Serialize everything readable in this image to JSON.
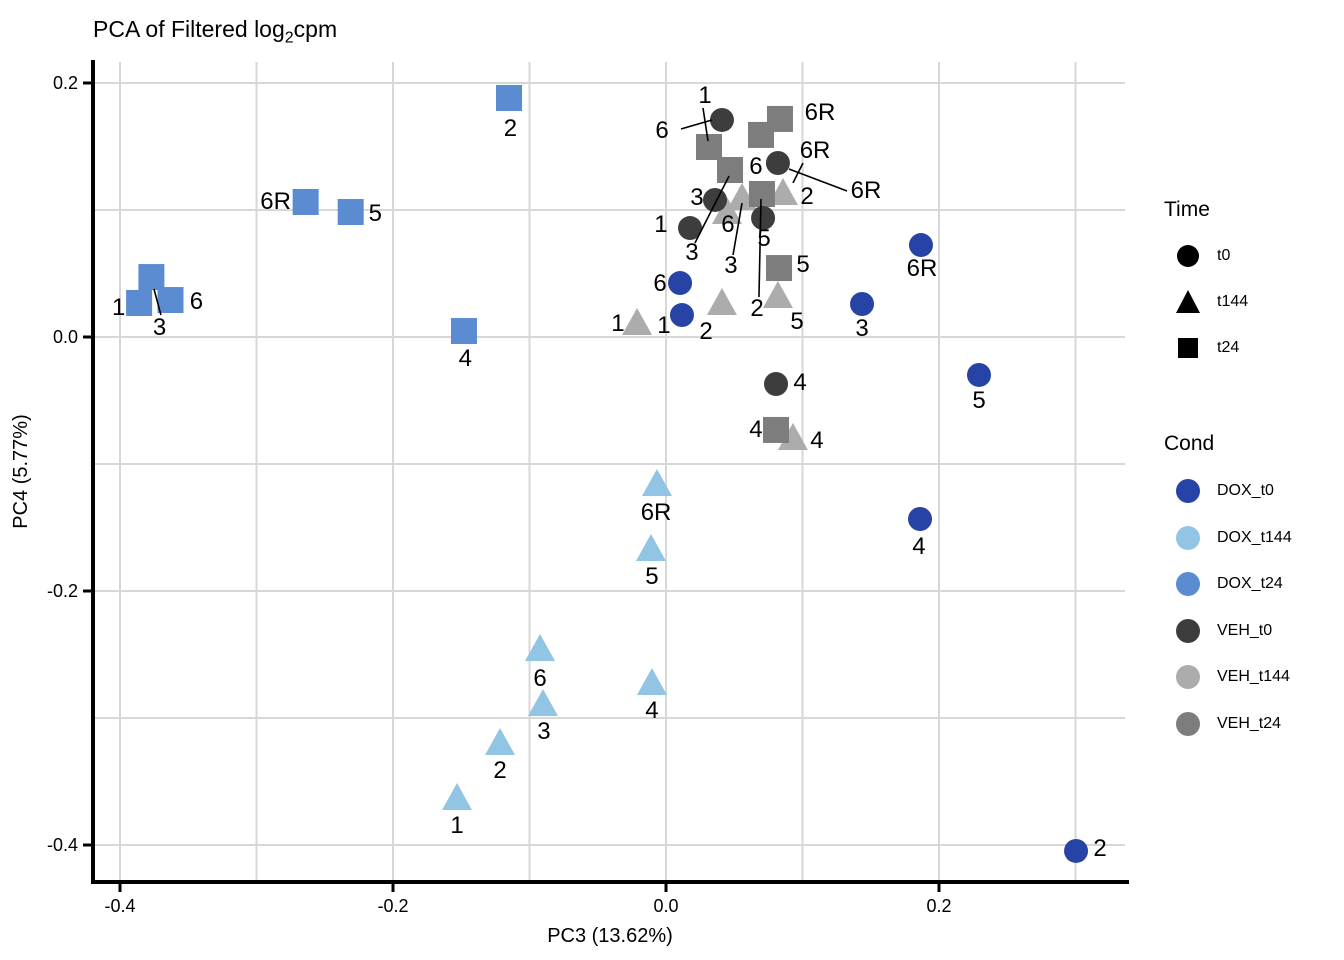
{
  "title": {
    "pre": "PCA of Filtered log",
    "sub": "2",
    "post": "cpm"
  },
  "axes": {
    "x": {
      "label": "PC3 (13.62%)",
      "ticks": [
        -0.4,
        -0.2,
        0.0,
        0.2
      ],
      "tick_labels": [
        "-0.4",
        "-0.2",
        "0.0",
        "0.2"
      ],
      "minor_ticks": [
        -0.3,
        -0.1,
        0.1,
        0.3
      ]
    },
    "y": {
      "label": "PC4 (5.77%)",
      "ticks": [
        0.2,
        0.0,
        -0.2,
        -0.4
      ],
      "tick_labels": [
        "0.2",
        "0.0",
        "-0.2",
        "-0.4"
      ],
      "minor_ticks": [
        0.1,
        -0.1,
        -0.3
      ]
    }
  },
  "colors": {
    "dox_t0": "#2743a6",
    "dox_t144": "#92c5e3",
    "dox_t24": "#5b8bd0",
    "veh_t0": "#3d3d3d",
    "veh_t144": "#acacac",
    "veh_t24": "#7d7d7d",
    "grid": "#d7d7d7",
    "axis": "#000000",
    "label_text": "#000000"
  },
  "legend": {
    "time": {
      "title": "Time",
      "items": [
        {
          "label": "t0",
          "shape": "circle"
        },
        {
          "label": "t144",
          "shape": "triangle"
        },
        {
          "label": "t24",
          "shape": "square"
        }
      ]
    },
    "cond": {
      "title": "Cond",
      "items": [
        {
          "label": "DOX_t0",
          "color": "#2743a6"
        },
        {
          "label": "DOX_t144",
          "color": "#92c5e3"
        },
        {
          "label": "DOX_t24",
          "color": "#5b8bd0"
        },
        {
          "label": "VEH_t0",
          "color": "#3d3d3d"
        },
        {
          "label": "VEH_t144",
          "color": "#acacac"
        },
        {
          "label": "VEH_t24",
          "color": "#7d7d7d"
        }
      ]
    }
  },
  "chart_data": {
    "type": "scatter",
    "title": "PCA of Filtered log2cpm",
    "xlabel": "PC3 (13.62%)",
    "ylabel": "PC4 (5.77%)",
    "xlim": [
      -0.418,
      0.336
    ],
    "ylim": [
      -0.431,
      0.217
    ],
    "grid": true,
    "legend_position": "right",
    "series": [
      {
        "name": "VEH_t144",
        "time": "t144",
        "shape": "triangle",
        "color": "#acacac",
        "points": [
          {
            "label": "3",
            "x": 0.0557,
            "y": 0.1102,
            "lx": 0.0476,
            "ly": 0.0567
          },
          {
            "label": "6",
            "x": 0.0447,
            "y": 0.0992,
            "lx": 0.0454,
            "ly": 0.089
          },
          {
            "label": "2",
            "x": 0.0857,
            "y": 0.1142,
            "lx": 0.1033,
            "ly": 0.111
          },
          {
            "label": "1",
            "x": -0.0212,
            "y": 0.0118,
            "lx": -0.0352,
            "ly": 0.011
          },
          {
            "label": "2",
            "x": 0.041,
            "y": 0.0276,
            "lx": 0.0293,
            "ly": 0.0047
          },
          {
            "label": "5",
            "x": 0.082,
            "y": 0.0331,
            "lx": 0.096,
            "ly": 0.0126
          },
          {
            "label": "4",
            "x": 0.093,
            "y": -0.0787,
            "lx": 0.1106,
            "ly": -0.0811
          }
        ]
      },
      {
        "name": "VEH_t24",
        "time": "t24",
        "shape": "square",
        "color": "#7d7d7d",
        "points": [
          {
            "label": null,
            "x": 0.0315,
            "y": 0.1496,
            "lx": null,
            "ly": null
          },
          {
            "label": "6R",
            "x": 0.0835,
            "y": 0.1717,
            "lx": 0.1128,
            "ly": 0.1772
          },
          {
            "label": null,
            "x": 0.0696,
            "y": 0.1591,
            "lx": null,
            "ly": null
          },
          {
            "label": "6",
            "x": 0.0469,
            "y": 0.1315,
            "lx": 0.0659,
            "ly": 0.1346
          },
          {
            "label": "2",
            "x": 0.0703,
            "y": 0.1126,
            "lx": 0.0667,
            "ly": 0.0228
          },
          {
            "label": "5",
            "x": 0.0828,
            "y": 0.0543,
            "lx": 0.1004,
            "ly": 0.0575
          },
          {
            "label": "4",
            "x": 0.0806,
            "y": -0.0732,
            "lx": 0.0659,
            "ly": -0.0724
          }
        ]
      },
      {
        "name": "VEH_t0",
        "time": "t0",
        "shape": "circle",
        "color": "#3d3d3d",
        "points": [
          {
            "label": null,
            "x": 0.041,
            "y": 0.1709,
            "lx": null,
            "ly": null
          },
          {
            "label": "3",
            "x": 0.0359,
            "y": 0.1079,
            "lx": 0.0227,
            "ly": 0.1102
          },
          {
            "label": "1",
            "x": 0.0176,
            "y": 0.0858,
            "lx": -0.0037,
            "ly": 0.089
          },
          {
            "label": "5",
            "x": 0.0711,
            "y": 0.0937,
            "lx": 0.0718,
            "ly": 0.078
          },
          {
            "label": null,
            "x": 0.082,
            "y": 0.137,
            "lx": null,
            "ly": null
          },
          {
            "label": "4",
            "x": 0.0806,
            "y": -0.037,
            "lx": 0.0982,
            "ly": -0.0354
          }
        ]
      },
      {
        "name": "DOX_t144",
        "time": "t144",
        "shape": "triangle",
        "color": "#92c5e3",
        "points": [
          {
            "label": "6R",
            "x": -0.0066,
            "y": -0.115,
            "lx": -0.0073,
            "ly": -0.1378
          },
          {
            "label": "5",
            "x": -0.011,
            "y": -0.1661,
            "lx": -0.0103,
            "ly": -0.1882
          },
          {
            "label": "6",
            "x": -0.0923,
            "y": -0.2449,
            "lx": -0.0923,
            "ly": -0.2685
          },
          {
            "label": "3",
            "x": -0.0901,
            "y": -0.2882,
            "lx": -0.0894,
            "ly": -0.3102
          },
          {
            "label": "4",
            "x": -0.0103,
            "y": -0.2717,
            "lx": -0.0103,
            "ly": -0.2937
          },
          {
            "label": "2",
            "x": -0.1216,
            "y": -0.3189,
            "lx": -0.1216,
            "ly": -0.3409
          },
          {
            "label": "1",
            "x": -0.1531,
            "y": -0.3622,
            "lx": -0.1531,
            "ly": -0.3843
          }
        ]
      },
      {
        "name": "DOX_t24",
        "time": "t24",
        "shape": "square",
        "color": "#5b8bd0",
        "points": [
          {
            "label": "1",
            "x": -0.386,
            "y": 0.0268,
            "lx": -0.401,
            "ly": 0.0236
          },
          {
            "label": "3",
            "x": -0.377,
            "y": 0.0472,
            "lx": -0.371,
            "ly": 0.0079
          },
          {
            "label": "6",
            "x": -0.363,
            "y": 0.0291,
            "lx": -0.344,
            "ly": 0.0283
          },
          {
            "label": "6R",
            "x": -0.264,
            "y": 0.1063,
            "lx": -0.286,
            "ly": 0.1071
          },
          {
            "label": "5",
            "x": -0.231,
            "y": 0.0984,
            "lx": -0.213,
            "ly": 0.0976
          },
          {
            "label": "2",
            "x": -0.115,
            "y": 0.1882,
            "lx": -0.114,
            "ly": 0.1646
          },
          {
            "label": "4",
            "x": -0.148,
            "y": 0.0047,
            "lx": -0.147,
            "ly": -0.0165
          }
        ]
      },
      {
        "name": "DOX_t0",
        "time": "t0",
        "shape": "circle",
        "color": "#2743a6",
        "points": [
          {
            "label": "1",
            "x": 0.0117,
            "y": 0.0173,
            "lx": -0.0015,
            "ly": 0.0094
          },
          {
            "label": "6",
            "x": 0.0103,
            "y": 0.0425,
            "lx": -0.0044,
            "ly": 0.0425
          },
          {
            "label": "6R",
            "x": 0.1868,
            "y": 0.0724,
            "lx": 0.1875,
            "ly": 0.0543
          },
          {
            "label": "3",
            "x": 0.1436,
            "y": 0.026,
            "lx": 0.1436,
            "ly": 0.0071
          },
          {
            "label": "5",
            "x": 0.2293,
            "y": -0.0299,
            "lx": 0.2293,
            "ly": -0.0496
          },
          {
            "label": "4",
            "x": 0.1861,
            "y": -0.1433,
            "lx": 0.1853,
            "ly": -0.1646
          },
          {
            "label": "2",
            "x": 0.3004,
            "y": -0.4047,
            "lx": 0.318,
            "ly": -0.4024
          }
        ]
      }
    ],
    "floating_labels": [
      {
        "text": "1",
        "x": 0.0286,
        "y": 0.1906
      },
      {
        "text": "6",
        "x": -0.0029,
        "y": 0.163
      },
      {
        "text": "3",
        "x": 0.019,
        "y": 0.0669
      },
      {
        "text": "6R",
        "x": 0.1092,
        "y": 0.1472
      },
      {
        "text": "6R",
        "x": 0.1465,
        "y": 0.1157
      }
    ],
    "leader_lines": [
      [
        0.0271,
        0.1803,
        0.0308,
        0.1543
      ],
      [
        0.011,
        0.1638,
        0.0337,
        0.1709
      ],
      [
        0.0212,
        0.074,
        0.0462,
        0.1268
      ],
      [
        0.0491,
        0.0646,
        0.0557,
        0.1055
      ],
      [
        0.0681,
        0.0315,
        0.0696,
        0.1087
      ],
      [
        0.1326,
        0.115,
        0.0901,
        0.1323
      ],
      [
        0.1004,
        0.137,
        0.093,
        0.1213
      ],
      [
        -0.3751,
        0.0378,
        -0.37,
        0.0173
      ]
    ]
  }
}
